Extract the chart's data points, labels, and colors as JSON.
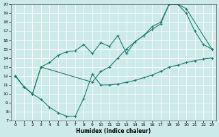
{
  "xlabel": "Humidex (Indice chaleur)",
  "xlim": [
    -0.5,
    23.5
  ],
  "ylim": [
    7,
    20
  ],
  "yticks": [
    7,
    8,
    9,
    10,
    11,
    12,
    13,
    14,
    15,
    16,
    17,
    18,
    19,
    20
  ],
  "xticks": [
    0,
    1,
    2,
    3,
    4,
    5,
    6,
    7,
    8,
    9,
    10,
    11,
    12,
    13,
    14,
    15,
    16,
    17,
    18,
    19,
    20,
    21,
    22,
    23
  ],
  "bg_color": "#cceae7",
  "line_color": "#1a7a6e",
  "grid_color": "#ffffff",
  "line1_x": [
    0,
    1,
    2,
    3,
    4,
    5,
    6,
    7,
    8,
    9,
    10,
    11,
    12,
    13,
    14,
    15,
    16,
    17,
    18,
    19,
    20,
    21,
    22,
    23
  ],
  "line1_y": [
    12.0,
    10.8,
    10.0,
    9.4,
    8.5,
    7.9,
    7.5,
    7.5,
    9.5,
    12.2,
    11.0,
    11.0,
    11.1,
    11.3,
    11.5,
    11.8,
    12.1,
    12.5,
    13.0,
    13.2,
    13.5,
    13.7,
    13.9,
    14.0
  ],
  "line2_x": [
    0,
    1,
    2,
    3,
    4,
    5,
    6,
    7,
    8,
    9,
    10,
    11,
    12,
    13,
    14,
    15,
    16,
    17,
    18,
    19,
    20,
    21,
    22,
    23
  ],
  "line2_y": [
    12.0,
    10.8,
    10.0,
    13.0,
    13.5,
    14.3,
    14.7,
    14.8,
    15.5,
    14.5,
    15.7,
    15.3,
    16.5,
    14.5,
    15.8,
    16.5,
    17.5,
    18.0,
    20.0,
    20.0,
    19.0,
    17.0,
    15.5,
    15.0
  ],
  "line3_x": [
    0,
    1,
    2,
    3,
    9,
    10,
    11,
    12,
    13,
    14,
    15,
    16,
    17,
    18,
    19,
    20,
    23
  ],
  "line3_y": [
    12.0,
    10.8,
    10.0,
    13.0,
    11.3,
    12.5,
    13.0,
    14.0,
    15.0,
    15.8,
    16.5,
    17.2,
    17.8,
    20.0,
    20.0,
    19.5,
    15.0
  ]
}
